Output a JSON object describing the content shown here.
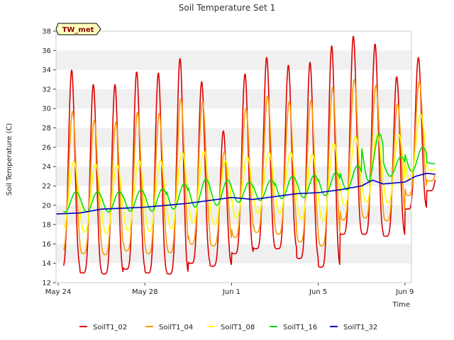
{
  "chart_data": {
    "type": "line",
    "title": "Soil Temperature Set 1",
    "xlabel": "Time",
    "ylabel": "Soil Temperature (C)",
    "badge": "TW_met",
    "x_start": "May 24",
    "x_range_days": [
      -0.1,
      16.3
    ],
    "ylim": [
      12,
      38
    ],
    "yticks": [
      12,
      14,
      16,
      18,
      20,
      22,
      24,
      26,
      28,
      30,
      32,
      34,
      36,
      38
    ],
    "xticks": [
      {
        "label": "May 24",
        "day": 0
      },
      {
        "label": "May 28",
        "day": 4
      },
      {
        "label": "Jun 1",
        "day": 8
      },
      {
        "label": "Jun 5",
        "day": 12
      },
      {
        "label": "Jun 9",
        "day": 16
      }
    ],
    "grid": "horizontal bands",
    "legend_position": "bottom",
    "series": [
      {
        "name": "SoilT1_02",
        "color": "#dd0000",
        "daily_min": [
          13.5,
          13.0,
          12.9,
          13.4,
          13.0,
          12.9,
          14.0,
          13.7,
          15.0,
          15.5,
          15.5,
          14.5,
          13.6,
          17.0,
          17.0,
          16.8,
          19.6,
          21.5
        ],
        "daily_max": [
          34.0,
          32.5,
          32.5,
          33.8,
          33.7,
          35.2,
          32.8,
          27.7,
          33.6,
          35.3,
          34.5,
          34.8,
          36.5,
          37.5,
          36.7,
          33.3,
          35.3,
          26.0
        ]
      },
      {
        "name": "SoilT1_04",
        "color": "#ff9900",
        "daily_min": [
          15.2,
          15.0,
          14.9,
          15.3,
          15.0,
          15.1,
          16.0,
          15.8,
          16.7,
          17.2,
          17.0,
          16.2,
          15.8,
          18.5,
          18.7,
          18.4,
          21.0,
          22.5
        ],
        "daily_max": [
          29.7,
          28.8,
          28.6,
          29.6,
          29.5,
          31.0,
          30.7,
          25.5,
          30.0,
          31.3,
          30.7,
          30.8,
          32.2,
          33.0,
          32.4,
          30.5,
          32.8,
          25.3
        ]
      },
      {
        "name": "SoilT1_08",
        "color": "#ffff00",
        "daily_min": [
          17.6,
          17.2,
          17.1,
          17.4,
          17.3,
          17.6,
          18.2,
          18.0,
          18.7,
          19.2,
          19.2,
          18.6,
          18.4,
          20.0,
          20.3,
          20.2,
          22.6,
          23.6
        ],
        "daily_max": [
          24.5,
          24.3,
          24.2,
          24.7,
          24.6,
          25.5,
          25.6,
          24.6,
          25.0,
          25.5,
          25.5,
          25.3,
          26.4,
          27.1,
          27.3,
          27.3,
          29.4,
          24.8
        ]
      },
      {
        "name": "SoilT1_16",
        "color": "#00e000",
        "daily_min": [
          19.3,
          19.3,
          19.3,
          19.4,
          19.4,
          19.6,
          19.8,
          20.0,
          20.3,
          20.5,
          20.7,
          20.8,
          21.0,
          21.6,
          22.5,
          23.0,
          23.5,
          24.3
        ],
        "daily_max": [
          21.4,
          21.4,
          21.4,
          21.6,
          21.7,
          22.2,
          22.7,
          22.6,
          22.4,
          22.6,
          23.0,
          23.1,
          23.4,
          24.1,
          27.4,
          25.0,
          26.0,
          24.5
        ]
      },
      {
        "name": "SoilT1_32",
        "color": "#0000bb",
        "points": [
          [
            -0.1,
            19.1
          ],
          [
            1,
            19.2
          ],
          [
            2,
            19.6
          ],
          [
            3,
            19.7
          ],
          [
            4,
            19.8
          ],
          [
            5,
            20.0
          ],
          [
            6,
            20.2
          ],
          [
            7,
            20.5
          ],
          [
            8,
            20.8
          ],
          [
            9,
            20.6
          ],
          [
            10,
            20.9
          ],
          [
            11,
            21.2
          ],
          [
            12,
            21.3
          ],
          [
            13,
            21.6
          ],
          [
            14,
            22.0
          ],
          [
            14.5,
            22.6
          ],
          [
            15,
            22.2
          ],
          [
            16,
            22.4
          ],
          [
            16.5,
            23.0
          ],
          [
            17,
            23.3
          ],
          [
            17.4,
            23.2
          ]
        ]
      }
    ]
  }
}
